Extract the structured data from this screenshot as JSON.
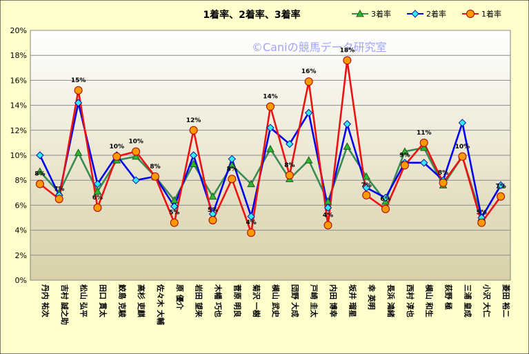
{
  "colors": {
    "background": "#ffffcc",
    "plot_top": "#ffffff",
    "plot_bottom": "#d8d0a6",
    "series_3": "#3a8a55",
    "series_2": "#0000ee",
    "series_1": "#ee1111",
    "marker_3": "#2eb82e",
    "marker_2": "#33eeee",
    "marker_1": "#ff9900",
    "watermark": "#9fa3ff"
  },
  "watermark": "©Caniの競馬データ研究室",
  "chart_data": {
    "type": "line",
    "title": "1着率、2着率、3着率",
    "xlabel": "",
    "ylabel": "",
    "ylim": [
      0,
      20
    ],
    "ytick_step": 2,
    "ytick_suffix": "%",
    "grid": true,
    "legend_position": "top-right",
    "categories": [
      "丹内 祐次",
      "吉村 誠之助",
      "松山 弘平",
      "田口 貫太",
      "鮫島 克駿",
      "高杉 吏麒",
      "佐々木 大輔",
      "原 優介",
      "岩田 望来",
      "木幡 巧也",
      "菅原 明良",
      "菊沢 一樹",
      "横山 武史",
      "団野 大成",
      "戸崎 圭太",
      "内田 博幸",
      "坂井 瑠星",
      "幸 英明",
      "長浜 鴻緒",
      "西村 淳也",
      "横山 和生",
      "荻野 極",
      "三浦 皇成",
      "小沢 大仁",
      "菱田 裕二"
    ],
    "series": [
      {
        "name": "3着率",
        "values": [
          8.7,
          7.0,
          10.2,
          7.1,
          9.6,
          9.9,
          8.3,
          6.4,
          9.3,
          6.7,
          9.2,
          7.7,
          10.5,
          8.1,
          9.6,
          6.3,
          10.7,
          8.3,
          6.3,
          10.3,
          10.6,
          7.6,
          9.9,
          5.0,
          7.6
        ]
      },
      {
        "name": "2着率",
        "values": [
          10.0,
          6.8,
          14.2,
          7.7,
          10.0,
          8.0,
          8.3,
          5.9,
          10.0,
          5.3,
          9.7,
          5.1,
          12.2,
          10.9,
          13.4,
          5.8,
          12.5,
          7.4,
          6.6,
          9.4,
          9.4,
          8.0,
          12.6,
          5.0,
          7.6
        ]
      },
      {
        "name": "1着率",
        "values": [
          7.7,
          6.5,
          15.2,
          5.8,
          9.9,
          10.3,
          8.3,
          4.6,
          12.0,
          4.8,
          8.1,
          3.8,
          13.9,
          8.4,
          15.9,
          4.4,
          17.6,
          6.8,
          5.7,
          9.2,
          11.0,
          7.8,
          9.9,
          4.6,
          6.7
        ]
      }
    ],
    "data_labels": {
      "series": "1着率",
      "labels": [
        "8%",
        "7%",
        "15%",
        "6%",
        "10%",
        "10%",
        "8%",
        "5%",
        "12%",
        "5%",
        "8%",
        "4%",
        "14%",
        "8%",
        "16%",
        "4%",
        "18%",
        "7%",
        "6%",
        "9%",
        "11%",
        "8%",
        "10%",
        "5%",
        "7%"
      ]
    }
  }
}
